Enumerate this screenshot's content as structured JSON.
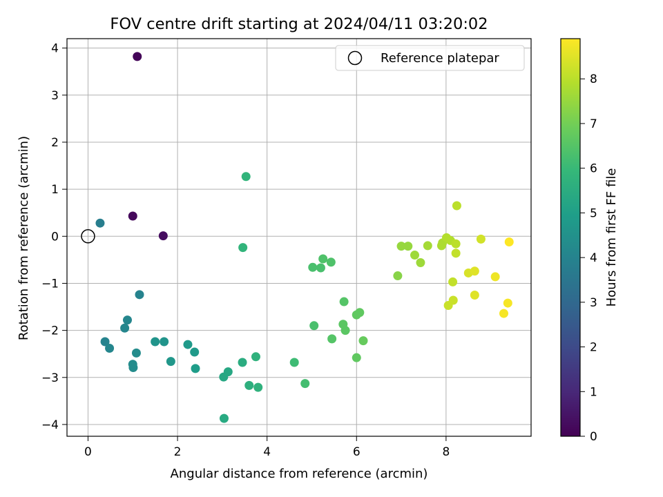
{
  "chart_data": {
    "type": "scatter",
    "title": "FOV centre drift starting at 2024/04/11 03:20:02",
    "xlabel": "Angular distance from reference (arcmin)",
    "ylabel": "Rotation from reference (arcmin)",
    "xlim": [
      -0.47,
      9.9
    ],
    "ylim": [
      -4.25,
      4.2
    ],
    "xticks": [
      "0",
      "2",
      "4",
      "6",
      "8"
    ],
    "yticks": [
      "−4",
      "−3",
      "−2",
      "−1",
      "0",
      "1",
      "2",
      "3",
      "4"
    ],
    "grid": true,
    "legend": {
      "placement": "top-right",
      "label": "Reference platepar"
    },
    "reference_point": {
      "x": 0,
      "y": 0
    },
    "colorbar": {
      "label": "Hours from first FF file",
      "min": 0,
      "max": 8.9,
      "colormap": "viridis",
      "ticks": [
        "0",
        "1",
        "2",
        "3",
        "4",
        "5",
        "6",
        "7",
        "8"
      ]
    },
    "points": [
      {
        "x": 1.1,
        "y": 3.82,
        "c": 0.1
      },
      {
        "x": 1.0,
        "y": 0.43,
        "c": 0.2
      },
      {
        "x": 1.68,
        "y": 0.01,
        "c": 0.3
      },
      {
        "x": 0.27,
        "y": 0.28,
        "c": 3.8
      },
      {
        "x": 1.15,
        "y": -1.24,
        "c": 4.0
      },
      {
        "x": 0.88,
        "y": -1.78,
        "c": 4.1
      },
      {
        "x": 0.82,
        "y": -1.95,
        "c": 4.1
      },
      {
        "x": 0.38,
        "y": -2.24,
        "c": 4.0
      },
      {
        "x": 0.48,
        "y": -2.38,
        "c": 4.1
      },
      {
        "x": 1.08,
        "y": -2.48,
        "c": 4.3
      },
      {
        "x": 1.0,
        "y": -2.72,
        "c": 4.3
      },
      {
        "x": 1.01,
        "y": -2.79,
        "c": 4.3
      },
      {
        "x": 1.5,
        "y": -2.24,
        "c": 4.6
      },
      {
        "x": 1.7,
        "y": -2.24,
        "c": 4.6
      },
      {
        "x": 1.85,
        "y": -2.66,
        "c": 4.7
      },
      {
        "x": 2.23,
        "y": -2.3,
        "c": 4.8
      },
      {
        "x": 2.38,
        "y": -2.46,
        "c": 4.8
      },
      {
        "x": 2.4,
        "y": -2.81,
        "c": 4.9
      },
      {
        "x": 3.03,
        "y": -2.99,
        "c": 5.3
      },
      {
        "x": 3.13,
        "y": -2.88,
        "c": 5.3
      },
      {
        "x": 3.04,
        "y": -3.87,
        "c": 5.4
      },
      {
        "x": 3.45,
        "y": -2.68,
        "c": 5.5
      },
      {
        "x": 3.6,
        "y": -3.17,
        "c": 5.6
      },
      {
        "x": 3.75,
        "y": -2.56,
        "c": 5.7
      },
      {
        "x": 3.8,
        "y": -3.21,
        "c": 5.7
      },
      {
        "x": 3.53,
        "y": 1.27,
        "c": 5.8
      },
      {
        "x": 3.46,
        "y": -0.24,
        "c": 5.8
      },
      {
        "x": 4.61,
        "y": -2.68,
        "c": 6.1
      },
      {
        "x": 4.85,
        "y": -3.13,
        "c": 6.2
      },
      {
        "x": 5.05,
        "y": -1.9,
        "c": 6.3
      },
      {
        "x": 5.02,
        "y": -0.66,
        "c": 6.3
      },
      {
        "x": 5.2,
        "y": -0.67,
        "c": 6.3
      },
      {
        "x": 5.25,
        "y": -0.48,
        "c": 6.4
      },
      {
        "x": 5.43,
        "y": -0.55,
        "c": 6.4
      },
      {
        "x": 5.45,
        "y": -2.18,
        "c": 6.5
      },
      {
        "x": 5.72,
        "y": -1.39,
        "c": 6.5
      },
      {
        "x": 5.7,
        "y": -1.87,
        "c": 6.6
      },
      {
        "x": 5.75,
        "y": -2.0,
        "c": 6.6
      },
      {
        "x": 6.0,
        "y": -1.67,
        "c": 6.7
      },
      {
        "x": 6.07,
        "y": -1.62,
        "c": 6.7
      },
      {
        "x": 6.0,
        "y": -2.58,
        "c": 6.7
      },
      {
        "x": 6.15,
        "y": -2.22,
        "c": 6.8
      },
      {
        "x": 6.92,
        "y": -0.84,
        "c": 7.3
      },
      {
        "x": 7.0,
        "y": -0.21,
        "c": 7.5
      },
      {
        "x": 7.15,
        "y": -0.21,
        "c": 7.5
      },
      {
        "x": 7.3,
        "y": -0.4,
        "c": 7.6
      },
      {
        "x": 7.43,
        "y": -0.56,
        "c": 7.6
      },
      {
        "x": 7.59,
        "y": -0.2,
        "c": 7.7
      },
      {
        "x": 7.9,
        "y": -0.2,
        "c": 7.8
      },
      {
        "x": 7.92,
        "y": -0.14,
        "c": 7.8
      },
      {
        "x": 8.01,
        "y": -0.03,
        "c": 7.9
      },
      {
        "x": 8.1,
        "y": -0.09,
        "c": 7.9
      },
      {
        "x": 8.22,
        "y": -0.16,
        "c": 8.0
      },
      {
        "x": 8.24,
        "y": 0.65,
        "c": 8.0
      },
      {
        "x": 8.22,
        "y": -0.36,
        "c": 8.1
      },
      {
        "x": 8.15,
        "y": -0.97,
        "c": 8.1
      },
      {
        "x": 8.05,
        "y": -1.47,
        "c": 8.2
      },
      {
        "x": 8.16,
        "y": -1.36,
        "c": 8.2
      },
      {
        "x": 8.78,
        "y": -0.06,
        "c": 8.3
      },
      {
        "x": 8.5,
        "y": -0.78,
        "c": 8.4
      },
      {
        "x": 8.64,
        "y": -0.74,
        "c": 8.5
      },
      {
        "x": 8.64,
        "y": -1.25,
        "c": 8.5
      },
      {
        "x": 9.1,
        "y": -0.86,
        "c": 8.7
      },
      {
        "x": 9.29,
        "y": -1.64,
        "c": 8.8
      },
      {
        "x": 9.38,
        "y": -1.42,
        "c": 8.8
      },
      {
        "x": 9.41,
        "y": -0.12,
        "c": 8.9
      }
    ]
  }
}
